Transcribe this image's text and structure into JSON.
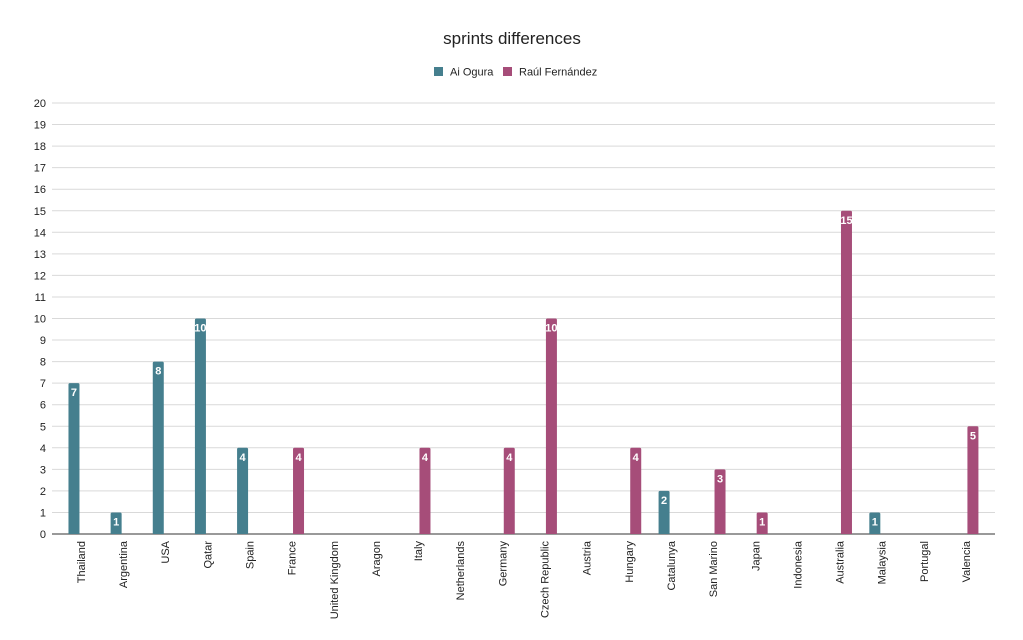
{
  "chart_data": {
    "type": "bar",
    "title": "sprints differences",
    "xlabel": "",
    "ylabel": "",
    "ylim": [
      0,
      20
    ],
    "yticks": [
      0,
      1,
      2,
      3,
      4,
      5,
      6,
      7,
      8,
      9,
      10,
      11,
      12,
      13,
      14,
      15,
      16,
      17,
      18,
      19,
      20
    ],
    "grid": true,
    "legend_position": "top",
    "categories": [
      "Thailand",
      "Argentina",
      "USA",
      "Qatar",
      "Spain",
      "France",
      "United Kingdom",
      "Aragon",
      "Italy",
      "Netherlands",
      "Germany",
      "Czech Republic",
      "Austria",
      "Hungary",
      "Catalunya",
      "San Marino",
      "Japan",
      "Indonesia",
      "Australia",
      "Malaysia",
      "Portugal",
      "Valencia"
    ],
    "series": [
      {
        "name": "Ai Ogura",
        "color": "#457f8e",
        "values": [
          7,
          1,
          8,
          10,
          4,
          null,
          null,
          null,
          null,
          null,
          null,
          null,
          null,
          null,
          2,
          null,
          null,
          null,
          null,
          1,
          null,
          null
        ]
      },
      {
        "name": "Raúl Fernández",
        "color": "#a64d79",
        "values": [
          null,
          null,
          null,
          null,
          null,
          4,
          null,
          null,
          4,
          null,
          4,
          10,
          null,
          4,
          null,
          3,
          1,
          null,
          15,
          null,
          null,
          5
        ]
      }
    ]
  }
}
